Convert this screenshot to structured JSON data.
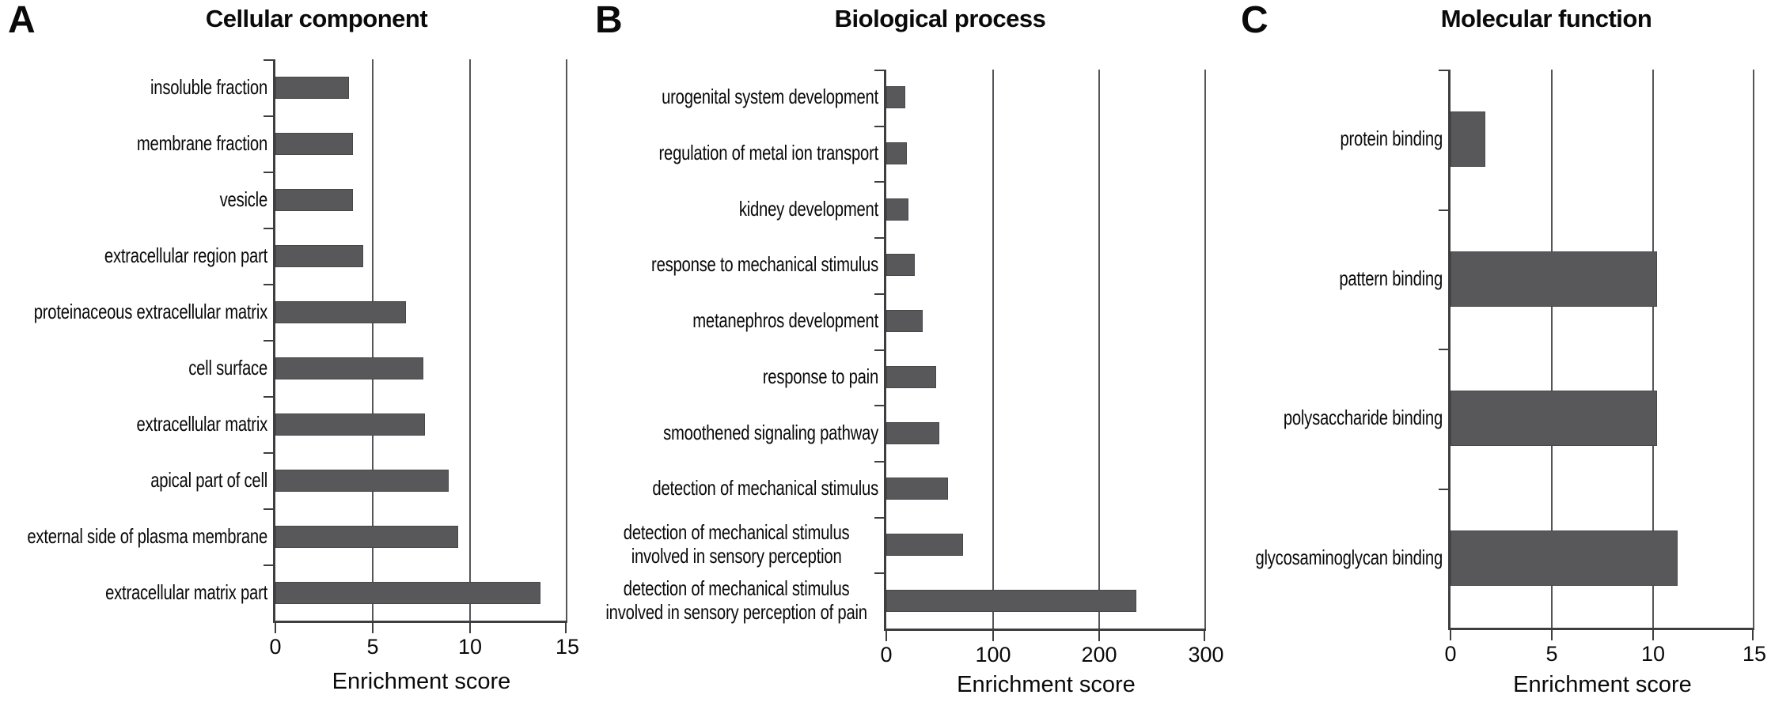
{
  "figure": {
    "xlabel": "Enrichment score",
    "bar_color": "#58585A",
    "axis_color": "#3E3E40",
    "grid_color": "#55555A",
    "text_color": "#0A0A0A",
    "background": "#FFFFFF"
  },
  "chart_data": [
    {
      "type": "bar",
      "orientation": "horizontal",
      "panel_letter": "A",
      "title": "Cellular component",
      "xlabel": "Enrichment score",
      "xlim": [
        0,
        15
      ],
      "xticks": [
        0,
        5,
        10,
        15
      ],
      "grid": true,
      "legend": false,
      "categories": [
        "insoluble fraction",
        "membrane fraction",
        "vesicle",
        "extracellular region part",
        "proteinaceous extracellular matrix",
        "cell surface",
        "extracellular matrix",
        "apical part of cell",
        "external side of plasma membrane",
        "extracellular matrix part"
      ],
      "values": [
        3.8,
        4.0,
        4.0,
        4.5,
        6.7,
        7.6,
        7.7,
        8.9,
        9.4,
        13.6
      ]
    },
    {
      "type": "bar",
      "orientation": "horizontal",
      "panel_letter": "B",
      "title": "Biological process",
      "xlabel": "Enrichment score",
      "xlim": [
        0,
        300
      ],
      "xticks": [
        0,
        100,
        200,
        300
      ],
      "grid": true,
      "legend": false,
      "categories": [
        "urogenital system development",
        "regulation of metal ion transport",
        "kidney development",
        "response to mechanical stimulus",
        "metanephros development",
        "response to pain",
        "smoothened signaling pathway",
        "detection of mechanical stimulus",
        "detection of mechanical stimulus involved in sensory perception",
        "detection of mechanical stimulus involved in sensory perception of pain"
      ],
      "values": [
        18,
        19,
        21,
        27,
        34,
        47,
        50,
        58,
        72,
        235
      ]
    },
    {
      "type": "bar",
      "orientation": "horizontal",
      "panel_letter": "C",
      "title": "Molecular function",
      "xlabel": "Enrichment score",
      "xlim": [
        0,
        15
      ],
      "xticks": [
        0,
        5,
        10,
        15
      ],
      "grid": true,
      "legend": false,
      "categories": [
        "protein binding",
        "pattern binding",
        "polysaccharide binding",
        "glycosaminoglycan binding"
      ],
      "values": [
        1.7,
        10.2,
        10.2,
        11.2
      ]
    }
  ]
}
